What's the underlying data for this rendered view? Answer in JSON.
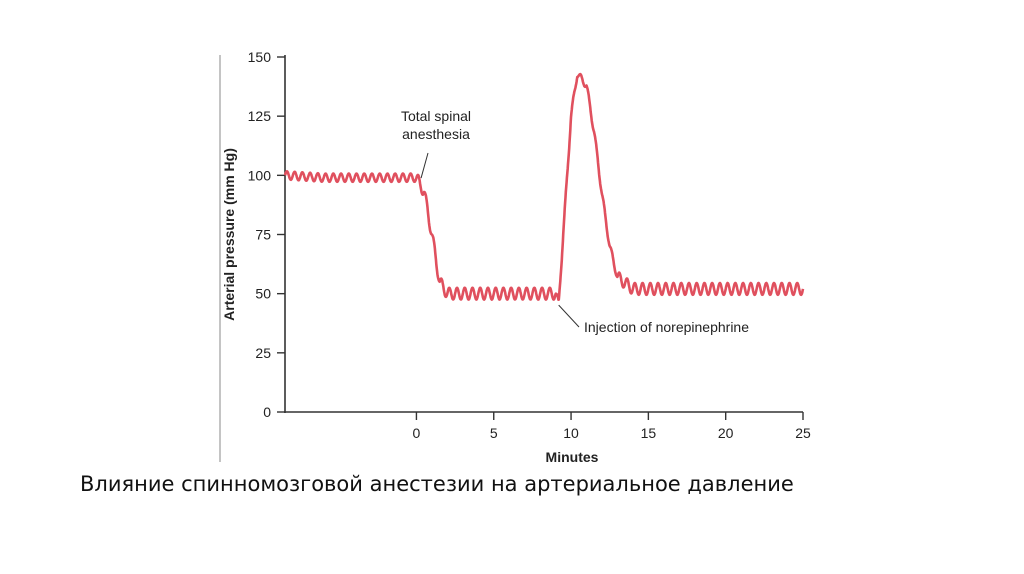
{
  "caption": "Влияние спинномозговой анестезии на артериальное давление",
  "chart_data": {
    "type": "line",
    "xlabel": "Minutes",
    "ylabel": "Arterial pressure (mm Hg)",
    "xlim": [
      -8.5,
      25
    ],
    "ylim": [
      0,
      150
    ],
    "x_ticks": [
      0,
      5,
      10,
      15,
      20,
      25
    ],
    "x_tick_labels": [
      "0",
      "5",
      "10",
      "15",
      "20",
      "25"
    ],
    "y_ticks": [
      0,
      25,
      50,
      75,
      100,
      125,
      150
    ],
    "y_tick_labels": [
      "0",
      "25",
      "50",
      "75",
      "100",
      "125",
      "150"
    ],
    "grid": false,
    "line_color": "#e0505e",
    "series": [
      {
        "x": [
          -8.5,
          -6,
          -4,
          -2,
          0,
          0.5,
          1,
          1.5,
          2,
          4,
          6,
          8,
          9,
          9.2,
          10,
          10.4,
          11,
          11.5,
          12,
          12.5,
          13,
          14,
          16,
          18,
          20,
          22,
          24,
          25
        ],
        "y": [
          100,
          99,
          99,
          99,
          99,
          93,
          75,
          55,
          50,
          50,
          50,
          50,
          50,
          46,
          125,
          143,
          138,
          118,
          92,
          70,
          57,
          52,
          52,
          52,
          52,
          52,
          52,
          52
        ]
      }
    ],
    "oscillation_amplitude": 2.5,
    "annotations": [
      {
        "text": [
          "Total spinal",
          "anesthesia"
        ],
        "x": 0.3,
        "y": 98
      },
      {
        "text": [
          "Injection of norepinephrine"
        ],
        "x": 9.2,
        "y": 46
      }
    ]
  }
}
